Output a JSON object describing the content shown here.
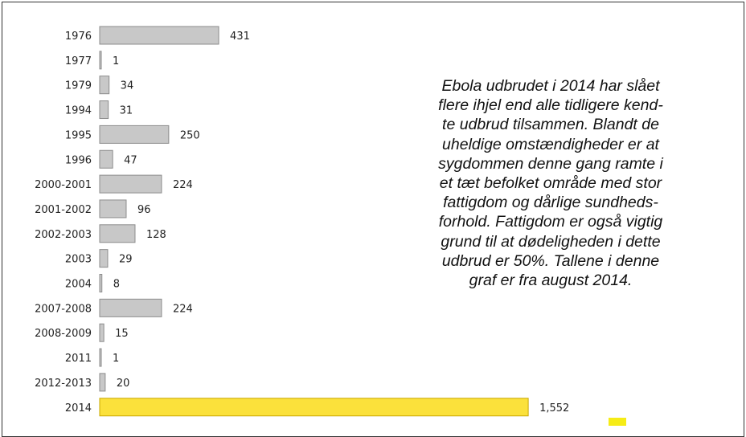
{
  "chart_data": {
    "type": "bar",
    "orientation": "horizontal",
    "categories": [
      "1976",
      "1977",
      "1979",
      "1994",
      "1995",
      "1996",
      "2000-2001",
      "2001-2002",
      "2002-2003",
      "2003",
      "2004",
      "2007-2008",
      "2008-2009",
      "2011",
      "2012-2013",
      "2014"
    ],
    "values": [
      431,
      1,
      34,
      31,
      250,
      47,
      224,
      96,
      128,
      29,
      8,
      224,
      15,
      1,
      20,
      1552
    ],
    "value_labels": [
      "431",
      "1",
      "34",
      "31",
      "250",
      "47",
      "224",
      "96",
      "128",
      "29",
      "8",
      "224",
      "15",
      "1",
      "20",
      "1,552"
    ],
    "highlight_category": "2014",
    "colors": {
      "bar": "#c8c8c8",
      "bar_border": "#8c8c8c",
      "highlight": "#fbe13b",
      "highlight_border": "#c9a800"
    },
    "title": "",
    "xlabel": "",
    "ylabel": "",
    "grid": false,
    "legend": "none"
  },
  "annotation": {
    "lines": [
      "Ebola udbrudet i 2014 har slået",
      "flere ihjel end alle tidligere kend-",
      "te udbrud tilsammen. Blandt de",
      "uheldige omstændigheder er at",
      "sygdommen denne gang ramte i",
      "et tæt befolket område med stor",
      "fattigdom og dårlige sundheds-",
      "forhold. Fattigdom er også vigtig",
      "grund til at dødeligheden i dette",
      "udbrud er 50%. Tallene i denne",
      "graf er fra august 2014."
    ]
  }
}
